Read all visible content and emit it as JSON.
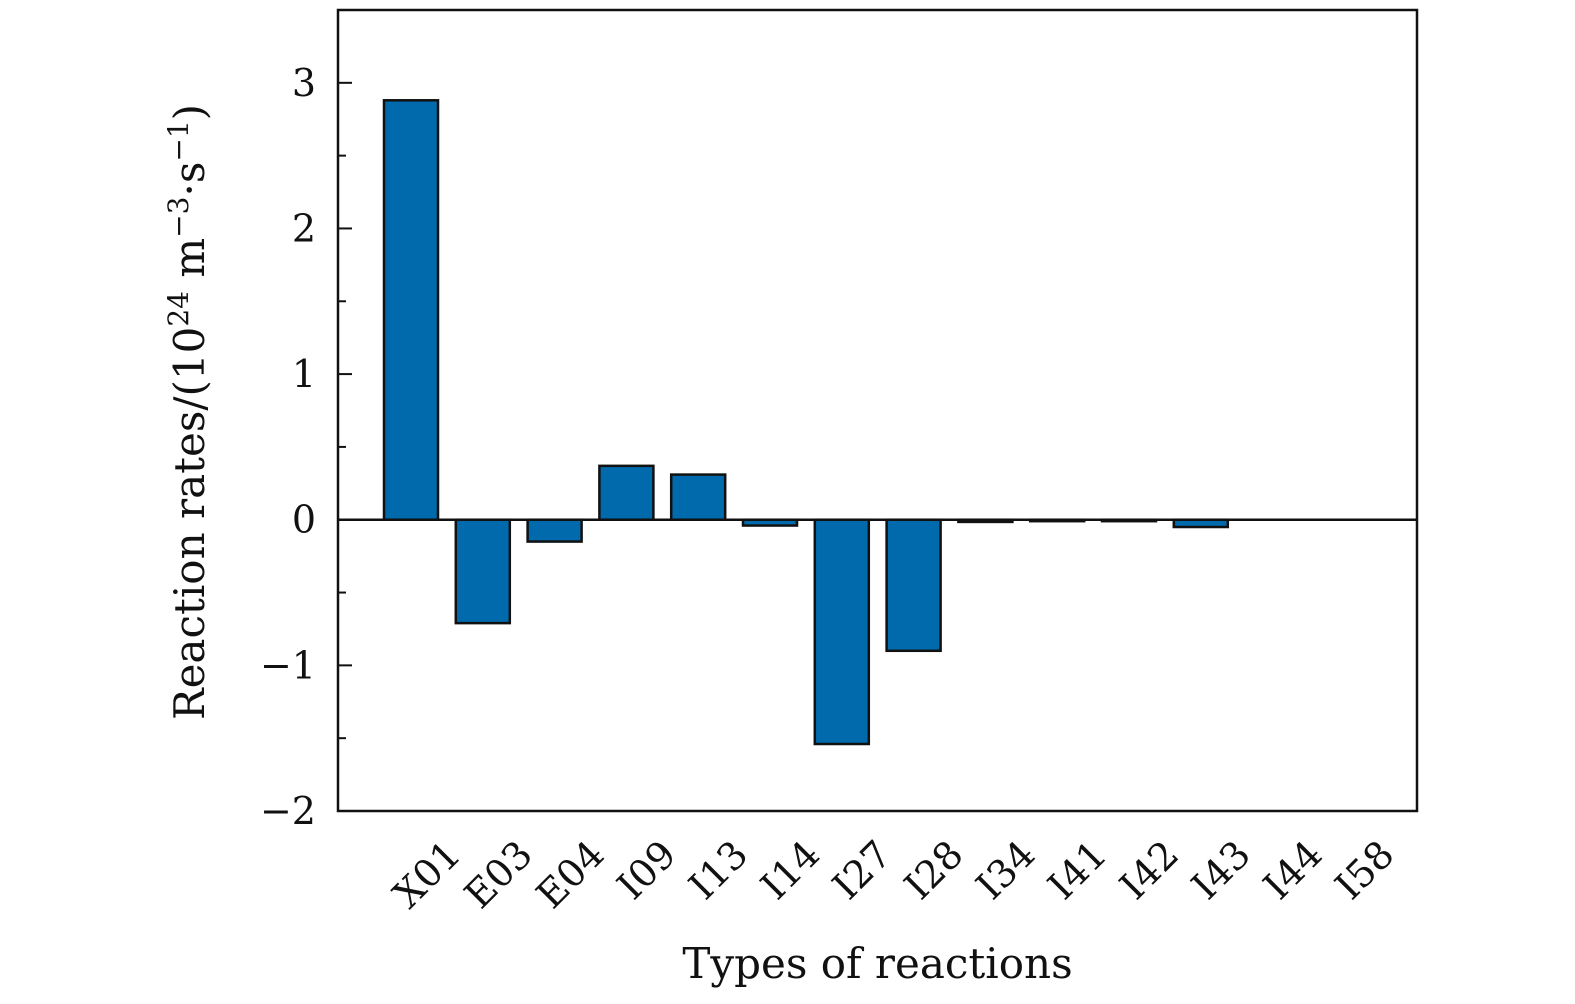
{
  "chart_data": {
    "type": "bar",
    "categories": [
      "X01",
      "E03",
      "E04",
      "I09",
      "I13",
      "I14",
      "I27",
      "I28",
      "I34",
      "I41",
      "I42",
      "I43",
      "I44",
      "I58"
    ],
    "values": [
      2.88,
      -0.71,
      -0.15,
      0.37,
      0.31,
      -0.04,
      -1.54,
      -0.9,
      -0.015,
      -0.01,
      -0.01,
      -0.05,
      0.0,
      0.0
    ],
    "xlabel": "Types of reactions",
    "ylabel": "Reaction rates/(10",
    "ylabel_exp1": "24",
    "ylabel_mid": " m",
    "ylabel_exp2": "−3",
    "ylabel_mid2": "·s",
    "ylabel_exp3": "−1",
    "ylabel_end": ")",
    "ylim": [
      -2,
      3.5
    ],
    "yticks": [
      -2,
      -1,
      0,
      1,
      2,
      3
    ],
    "ytick_labels": [
      "−2",
      "−1",
      "0",
      "1",
      "2",
      "3"
    ],
    "bar_color": "#006aad",
    "bar_edge_color": "#111111",
    "grid": false,
    "legend": false
  }
}
